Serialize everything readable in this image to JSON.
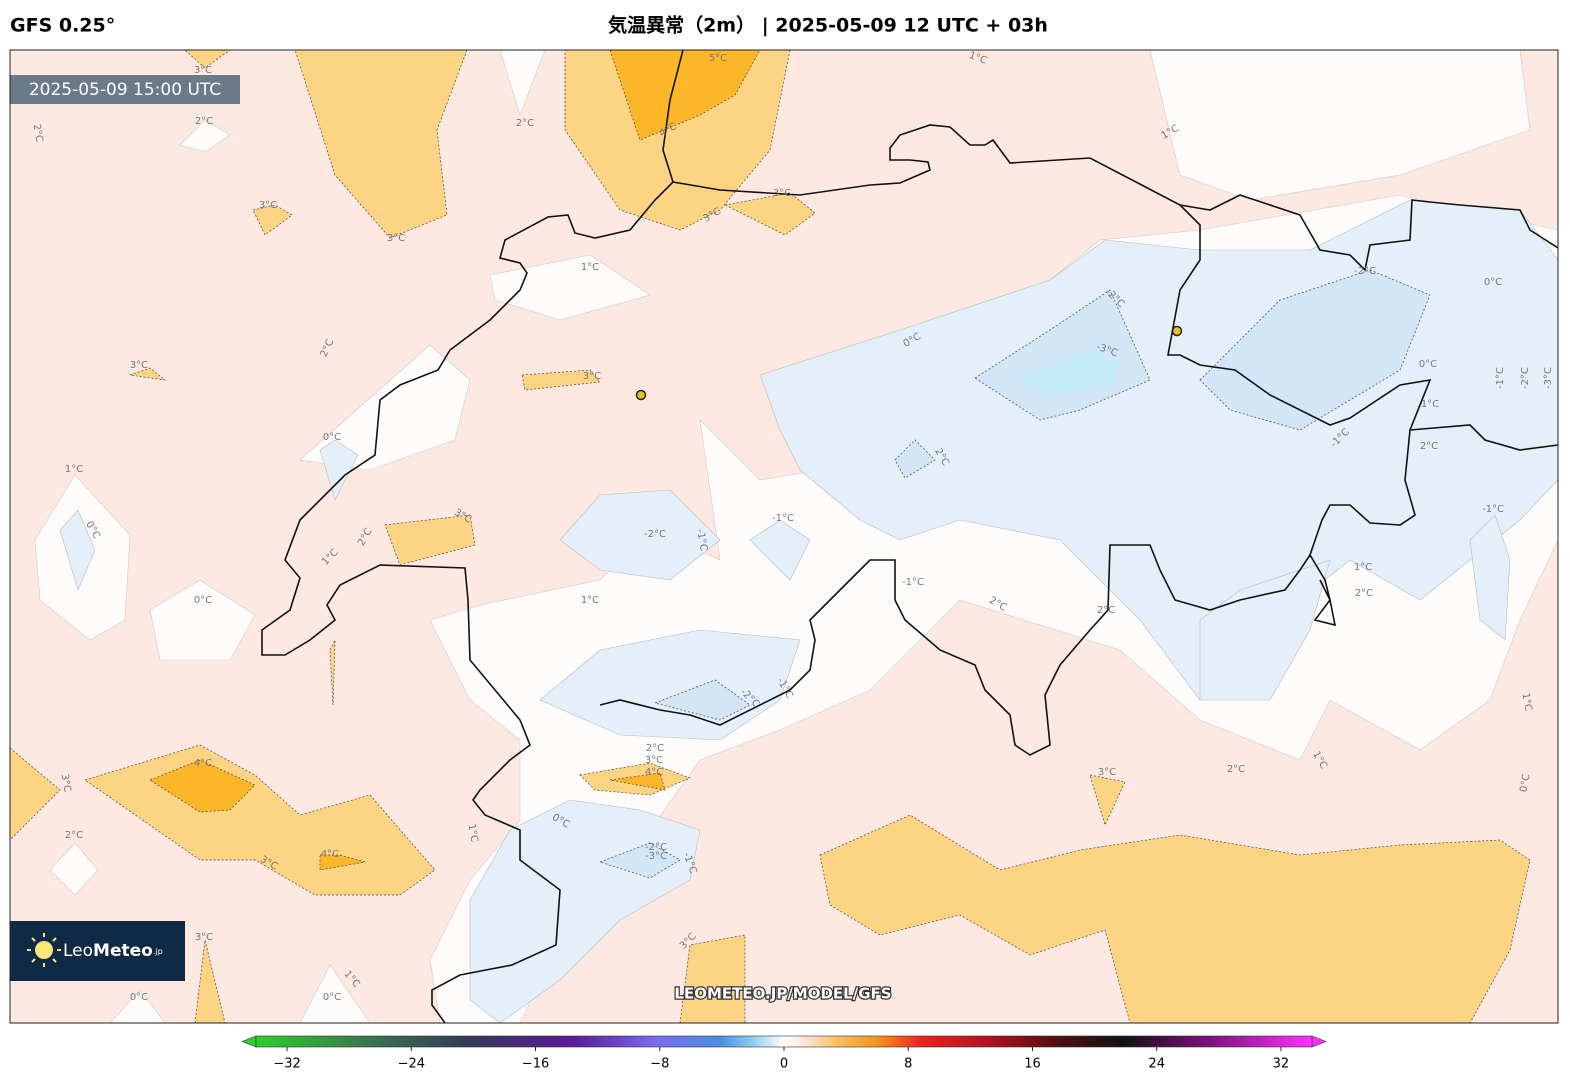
{
  "header": {
    "model": "GFS 0.25°",
    "title": "気温異常（2m） | 2025-05-09 12 UTC + 03h"
  },
  "valid_time": "2025-05-09 15:00 UTC",
  "watermark": "LEOMETEO.JP/MODEL/GFS",
  "logo": {
    "text_light": "Leo",
    "text_bold": "Meteo",
    "suffix": ".jp"
  },
  "contour_labels": [
    "3°C",
    "2°C",
    "2°C",
    "2°C",
    "5°C",
    "4°C",
    "1°C",
    "1°C",
    "3°C",
    "3°C",
    "3°C",
    "3°C",
    "1°C",
    "2°C",
    "3°C",
    "3°C",
    "0°C",
    "-2°C",
    "-3°C",
    "-2°C",
    "0°C",
    "0°C",
    "1°C",
    "2°C",
    "-1°C",
    "-1°C",
    "-2°C",
    "-3°C",
    "0°C",
    "1°C",
    "0°C",
    "2°C",
    "3°C",
    "2°C",
    "1°C",
    "-2°C",
    "-1°C",
    "-1°C",
    "-1°C",
    "-1°C",
    "0°C",
    "1°C",
    "2°C",
    "2°C",
    "1°C",
    "2°C",
    "-2°C",
    "-1°C",
    "1°C",
    "2°C",
    "3°C",
    "4°C",
    "4°C",
    "3°C",
    "2°C",
    "1°C",
    "3°C",
    "0°C",
    "2°C",
    "0°C",
    "1°C",
    "-2°C",
    "-3°C",
    "-1°C",
    "4°C",
    "3°C",
    "3°C",
    "3°C",
    "1°C",
    "0°C",
    "0°C"
  ],
  "colorbar": {
    "range": [
      -34,
      34
    ],
    "ticks": [
      {
        "value": -32,
        "label": "−32"
      },
      {
        "value": -24,
        "label": "−24"
      },
      {
        "value": -16,
        "label": "−16"
      },
      {
        "value": -8,
        "label": "−8"
      },
      0,
      8,
      16,
      24,
      32
    ]
  }
}
